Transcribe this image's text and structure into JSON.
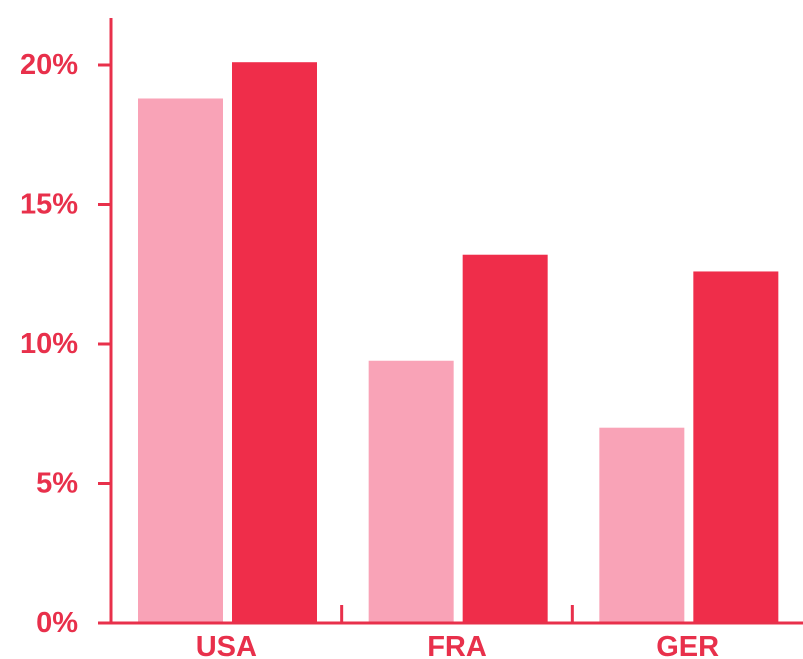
{
  "chart_data": {
    "type": "bar",
    "title": "",
    "xlabel": "",
    "ylabel": "",
    "categories": [
      "USA",
      "FRA",
      "GER"
    ],
    "series": [
      {
        "values": [
          18.8,
          9.4,
          7.0
        ]
      },
      {
        "values": [
          20.1,
          13.2,
          12.6
        ]
      }
    ],
    "ylim": [
      0,
      21
    ],
    "yticks": [
      0,
      5,
      10,
      15,
      20
    ],
    "ytick_labels": [
      "0%",
      "5%",
      "10%",
      "15%",
      "20%"
    ],
    "grid": false,
    "legend": "none"
  },
  "colors": {
    "series": [
      "#f9a3b7",
      "#ef2d4a"
    ],
    "axis": "#e8304b",
    "text": "#e8304b"
  }
}
